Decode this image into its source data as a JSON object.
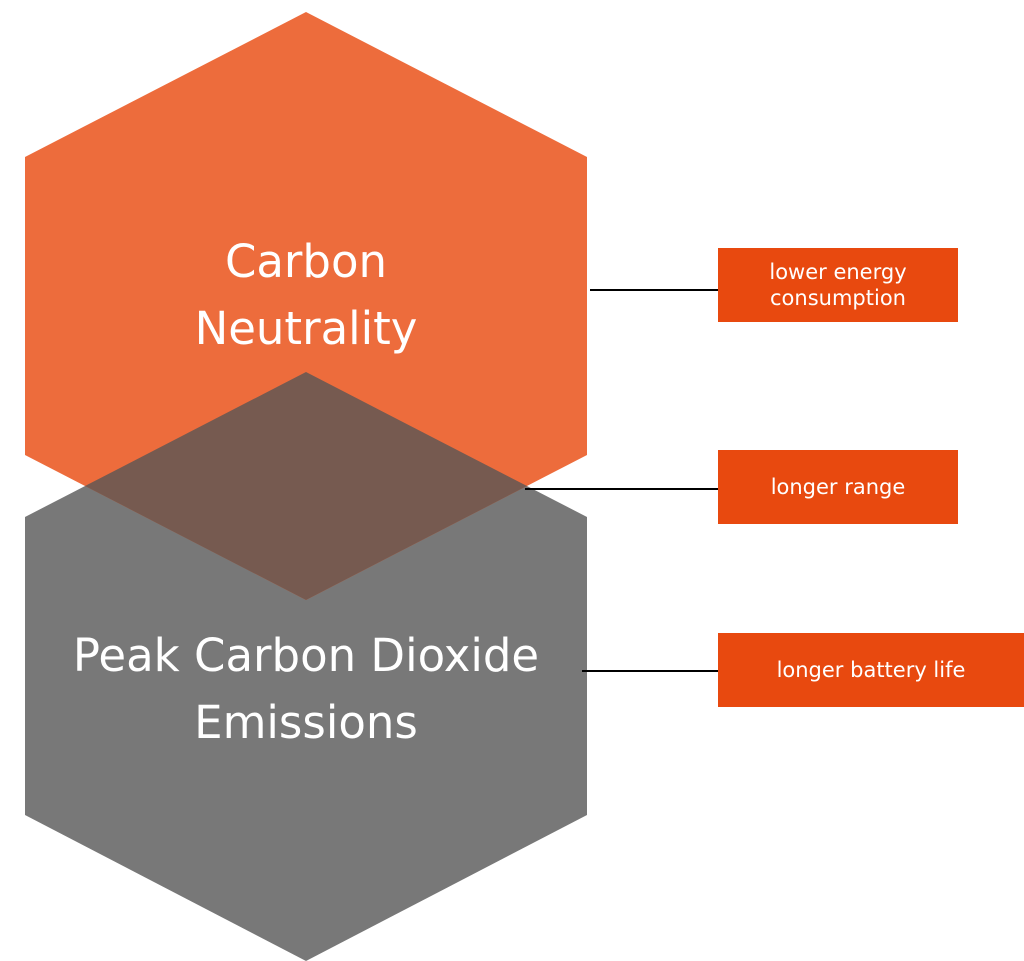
{
  "hexagons": [
    {
      "label": "Carbon Neutrality"
    },
    {
      "label": "Peak Carbon Dioxide Emissions"
    }
  ],
  "callouts": [
    {
      "label": "lower energy consumption"
    },
    {
      "label": "longer range"
    },
    {
      "label": "longer battery life"
    }
  ]
}
